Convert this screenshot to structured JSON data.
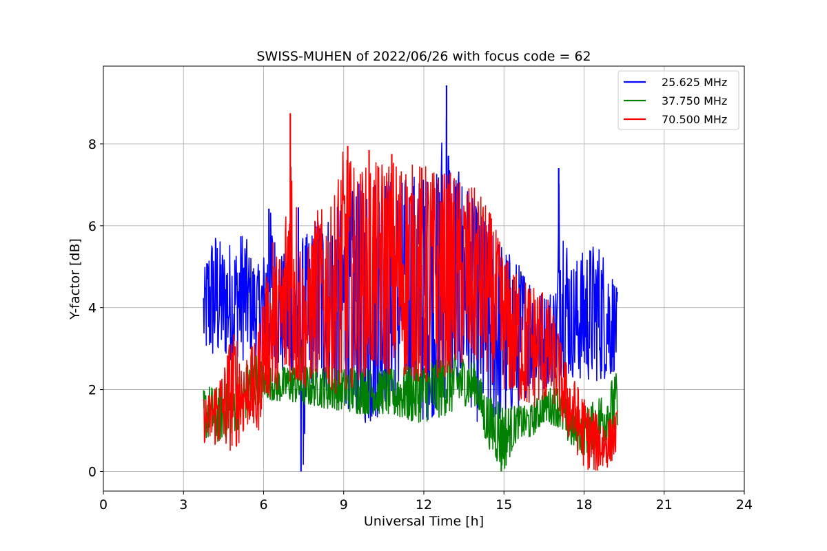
{
  "chart_data": {
    "type": "line",
    "title": "SWISS-MUHEN of 2022/06/26 with focus code = 62",
    "xlabel": "Universal Time [h]",
    "ylabel": "Y-factor [dB]",
    "xlim": [
      0,
      24
    ],
    "ylim": [
      -0.48,
      9.9
    ],
    "xticks": [
      0,
      3,
      6,
      9,
      12,
      15,
      18,
      21,
      24
    ],
    "yticks": [
      0,
      2,
      4,
      6,
      8
    ],
    "grid": true,
    "legend_position": "top-right",
    "series": [
      {
        "name": "25.625 MHz",
        "color": "#0000ff",
        "x": [
          3.75,
          4.0,
          4.25,
          4.5,
          4.75,
          5.0,
          5.25,
          5.5,
          5.75,
          6.0,
          6.25,
          6.5,
          6.75,
          7.0,
          7.25,
          7.5,
          7.75,
          8.0,
          8.5,
          9.0,
          9.5,
          10.0,
          10.5,
          11.0,
          11.5,
          12.0,
          12.5,
          12.85,
          13.0,
          13.5,
          14.0,
          14.5,
          15.0,
          15.5,
          16.0,
          16.5,
          17.0,
          17.05,
          17.5,
          18.0,
          18.5,
          19.0,
          19.25
        ],
        "min": [
          2.9,
          2.7,
          2.7,
          2.8,
          2.7,
          2.8,
          2.7,
          2.9,
          2.8,
          2.5,
          2.6,
          2.5,
          2.3,
          2.2,
          2.2,
          0.0,
          2.0,
          2.0,
          1.8,
          1.6,
          1.4,
          1.0,
          1.6,
          1.8,
          1.4,
          1.2,
          1.4,
          1.8,
          2.0,
          2.0,
          1.2,
          1.2,
          1.2,
          1.5,
          2.0,
          2.0,
          2.3,
          2.3,
          2.3,
          2.2,
          2.2,
          2.3,
          2.6
        ],
        "max": [
          4.8,
          5.7,
          5.85,
          5.4,
          5.6,
          5.5,
          6.0,
          5.3,
          5.0,
          5.3,
          6.4,
          5.5,
          5.3,
          5.7,
          5.2,
          5.8,
          5.8,
          6.3,
          6.3,
          6.6,
          7.0,
          7.2,
          7.3,
          7.0,
          7.3,
          7.2,
          7.3,
          9.4,
          7.5,
          7.2,
          6.4,
          6.0,
          5.5,
          5.1,
          4.8,
          4.3,
          4.6,
          7.4,
          5.0,
          5.4,
          5.6,
          5.0,
          4.4
        ],
        "spikes": [
          [
            12.85,
            9.43
          ],
          [
            17.05,
            7.41
          ],
          [
            7.4,
            0.0
          ],
          [
            6.2,
            6.42
          ],
          [
            7.3,
            6.45
          ]
        ]
      },
      {
        "name": "37.750 MHz",
        "color": "#008000",
        "x": [
          3.75,
          4.0,
          4.25,
          4.5,
          4.75,
          5.0,
          5.25,
          5.5,
          5.75,
          6.0,
          6.5,
          7.0,
          7.5,
          8.0,
          8.5,
          9.0,
          9.5,
          10.0,
          10.5,
          11.0,
          11.5,
          12.0,
          12.5,
          13.0,
          13.5,
          14.0,
          14.25,
          14.5,
          14.75,
          15.0,
          15.5,
          16.0,
          16.5,
          17.0,
          17.5,
          18.0,
          18.5,
          19.0,
          19.25
        ],
        "min": [
          0.8,
          0.8,
          0.7,
          0.8,
          0.9,
          1.0,
          1.2,
          1.4,
          1.6,
          1.8,
          1.7,
          1.7,
          1.6,
          1.6,
          1.5,
          1.5,
          1.4,
          1.4,
          1.4,
          1.3,
          1.2,
          1.2,
          1.3,
          1.4,
          1.6,
          1.6,
          0.8,
          0.5,
          0.2,
          0.0,
          0.8,
          0.8,
          1.2,
          1.1,
          0.6,
          0.4,
          0.6,
          0.8,
          0.8
        ],
        "max": [
          2.0,
          2.1,
          2.0,
          2.1,
          2.2,
          2.3,
          2.5,
          2.7,
          2.9,
          2.6,
          2.5,
          2.6,
          2.6,
          2.5,
          2.6,
          2.5,
          2.6,
          2.5,
          2.5,
          2.5,
          2.6,
          2.6,
          2.8,
          2.9,
          2.8,
          2.6,
          2.0,
          1.8,
          1.9,
          1.6,
          1.6,
          1.6,
          2.0,
          2.1,
          1.6,
          1.5,
          1.8,
          2.2,
          2.45
        ],
        "spikes": [
          [
            7.4,
            3.05
          ],
          [
            14.9,
            0.0
          ]
        ]
      },
      {
        "name": "70.500 MHz",
        "color": "#ff0000",
        "x": [
          3.75,
          4.0,
          4.25,
          4.5,
          4.75,
          5.0,
          5.25,
          5.5,
          5.75,
          6.0,
          6.25,
          6.5,
          6.75,
          7.0,
          7.25,
          7.5,
          7.75,
          8.0,
          8.5,
          9.0,
          9.5,
          10.0,
          10.5,
          11.0,
          11.5,
          12.0,
          12.5,
          13.0,
          13.5,
          14.0,
          14.5,
          15.0,
          15.5,
          16.0,
          16.5,
          17.0,
          17.25,
          17.5,
          17.75,
          18.0,
          18.25,
          18.5,
          18.75,
          19.0,
          19.25
        ],
        "min": [
          0.7,
          0.7,
          0.6,
          0.6,
          0.5,
          0.6,
          0.9,
          1.2,
          0.7,
          1.8,
          1.8,
          2.0,
          1.9,
          2.2,
          2.0,
          2.0,
          2.1,
          2.4,
          2.0,
          1.8,
          2.2,
          2.4,
          2.4,
          2.3,
          2.3,
          2.0,
          2.2,
          2.4,
          2.5,
          2.6,
          2.2,
          2.0,
          1.7,
          1.5,
          1.7,
          1.6,
          1.0,
          0.7,
          0.4,
          0.1,
          0.0,
          0.0,
          0.0,
          0.2,
          0.5
        ],
        "max": [
          1.8,
          1.9,
          2.3,
          2.5,
          3.3,
          3.4,
          2.8,
          3.0,
          3.2,
          4.5,
          5.0,
          5.3,
          5.5,
          8.7,
          6.5,
          5.0,
          5.7,
          6.4,
          6.4,
          7.9,
          7.3,
          7.5,
          7.6,
          7.6,
          7.5,
          7.5,
          7.3,
          7.3,
          7.0,
          6.9,
          6.3,
          5.3,
          4.8,
          4.6,
          4.5,
          3.5,
          2.8,
          2.4,
          2.1,
          1.8,
          1.5,
          1.4,
          1.3,
          1.3,
          1.5
        ],
        "spikes": [
          [
            7.0,
            8.75
          ],
          [
            9.15,
            7.95
          ],
          [
            9.95,
            7.85
          ],
          [
            10.8,
            7.75
          ],
          [
            6.35,
            5.6
          ]
        ]
      }
    ]
  }
}
